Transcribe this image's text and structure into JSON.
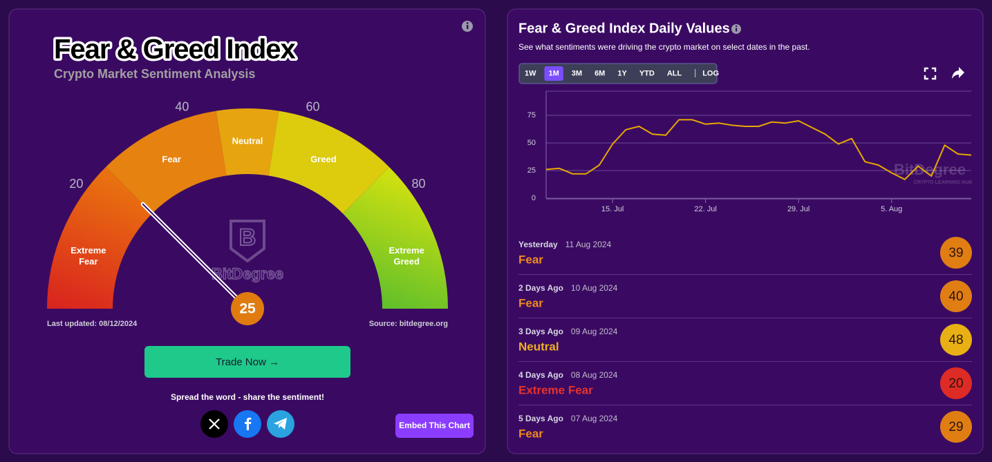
{
  "gauge_card": {
    "title": "Fear & Greed Index",
    "subtitle": "Crypto Market Sentiment Analysis",
    "ticks": [
      20,
      40,
      60,
      80
    ],
    "bands": [
      "Extreme Fear",
      "Fear",
      "Neutral",
      "Greed",
      "Extreme Greed"
    ],
    "value": 25,
    "watermark": "BitDegree",
    "last_updated": "Last updated: 08/12/2024",
    "source": "Source: bitdegree.org",
    "button": "Trade Now →",
    "share_text": "Spread the word - share the sentiment!",
    "embed_button": "Embed This Chart"
  },
  "history_card": {
    "title": "Fear & Greed Index Daily Values",
    "subtitle": "See what sentiments were driving the crypto market on select dates in the past.",
    "ranges": [
      "1W",
      "1M",
      "3M",
      "6M",
      "1Y",
      "YTD",
      "ALL",
      "LOG"
    ],
    "active_range": "1M",
    "chart_data": {
      "type": "line",
      "categories": [
        "10. Jul",
        "11. Jul",
        "12. Jul",
        "13. Jul",
        "14. Jul",
        "15. Jul",
        "16. Jul",
        "17. Jul",
        "18. Jul",
        "19. Jul",
        "20. Jul",
        "21. Jul",
        "22. Jul",
        "23. Jul",
        "24. Jul",
        "25. Jul",
        "26. Jul",
        "27. Jul",
        "28. Jul",
        "29. Jul",
        "30. Jul",
        "31. Jul",
        "1. Aug",
        "2. Aug",
        "3. Aug",
        "4. Aug",
        "5. Aug",
        "6. Aug",
        "7. Aug",
        "8. Aug",
        "9. Aug",
        "10. Aug",
        "11. Aug"
      ],
      "values": [
        26,
        27,
        22,
        22,
        30,
        49,
        62,
        65,
        58,
        57,
        71,
        71,
        67,
        68,
        66,
        65,
        65,
        69,
        68,
        70,
        64,
        58,
        49,
        54,
        33,
        30,
        23,
        17,
        29,
        20,
        48,
        40,
        39
      ],
      "color": "#e8a800",
      "ylim": [
        0,
        100
      ],
      "yticks": [
        0,
        25,
        50,
        75
      ],
      "xticks": [
        "15. Jul",
        "22. Jul",
        "29. Jul",
        "5. Aug"
      ],
      "grid": true,
      "watermark": "BitDegree",
      "watermark_sub": "CRYPTO LEARNING HUB"
    },
    "rows": [
      {
        "label": "Yesterday",
        "date": "11 Aug 2024",
        "sentiment": "Fear",
        "value": 39,
        "color": "#e07e14",
        "text_color": "#f08a1c"
      },
      {
        "label": "2 Days Ago",
        "date": "10 Aug 2024",
        "sentiment": "Fear",
        "value": 40,
        "color": "#e07e14",
        "text_color": "#f08a1c"
      },
      {
        "label": "3 Days Ago",
        "date": "09 Aug 2024",
        "sentiment": "Neutral",
        "value": 48,
        "color": "#e8b014",
        "text_color": "#f0b020"
      },
      {
        "label": "4 Days Ago",
        "date": "08 Aug 2024",
        "sentiment": "Extreme Fear",
        "value": 20,
        "color": "#de2b26",
        "text_color": "#e8322a"
      },
      {
        "label": "5 Days Ago",
        "date": "07 Aug 2024",
        "sentiment": "Fear",
        "value": 29,
        "color": "#e07e14",
        "text_color": "#f08a1c"
      }
    ]
  }
}
